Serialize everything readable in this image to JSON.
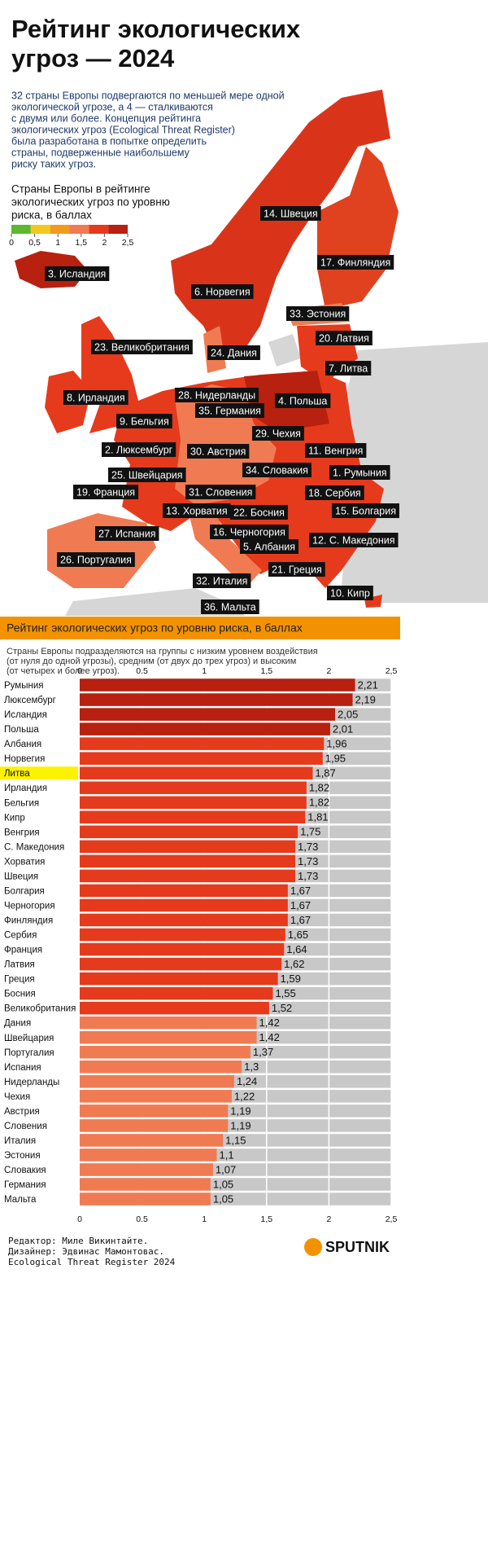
{
  "header": {
    "title": [
      "Рейтинг экологических",
      "угроз — 2024"
    ],
    "intro": [
      "32 страны Европы подвергаются по меньшей мере одной",
      "экологической угрозе, а 4 — сталкиваются",
      "с двумя или более. Концепция рейтинга",
      "экологических угроз (Ecological Threat Register)",
      "была разработана в попытке определить",
      "страны, подверженные наибольшему",
      "риску таких угроз."
    ]
  },
  "map": {
    "legend_title": [
      "Страны Европы в рейтинге",
      "экологических угроз по уровню",
      "риска, в баллах"
    ],
    "legend_ticks": [
      0,
      {
        "value": 0.5,
        "label": "0,5"
      },
      1,
      {
        "value": 1.5,
        "label": "1,5"
      },
      2,
      {
        "value": 2.5,
        "label": "2,5"
      }
    ],
    "legend_colors": [
      "#5cb82e",
      "#f2c81e",
      "#f29a1e",
      "#f07b52",
      "#e63a1c",
      "#b8200f"
    ],
    "labels": [
      "14. Швеция",
      "17. Финляндия",
      "3. Исландия",
      "6. Норвегия",
      "33. Эстония",
      "20. Латвия",
      "23. Великобритания",
      "24. Дания",
      "7. Литва",
      "28. Нидерланды",
      "4. Польша",
      "8. Ирландия",
      "35. Германия",
      "9. Бельгия",
      "29. Чехия",
      "2. Люксембург",
      "30. Австрия",
      "11. Венгрия",
      "25. Швейцария",
      "34. Словакия",
      "1. Румыния",
      "19. Франция",
      "31. Словения",
      "18. Сербия",
      "13. Хорватия",
      "22. Босния",
      "15. Болгария",
      "27. Испания",
      "16. Черногория",
      "12. С. Македония",
      "5. Албания",
      "26. Португалия",
      "21. Греция",
      "32. Италия",
      "10. Кипр",
      "36. Мальта"
    ]
  },
  "chart_data": {
    "type": "bar",
    "orientation": "horizontal",
    "title": "Рейтинг экологических угроз по уровню риска, в баллах",
    "subtitle": [
      "Страны Европы подразделяются на группы с низким уровнем воздействия",
      "(от нуля до одной угрозы), средним (от двух до трех угроз) и высоким",
      "(от четырех и более угроз)."
    ],
    "categories": [
      "Румыния",
      "Люксембург",
      "Исландия",
      "Польша",
      "Албания",
      "Норвегия",
      "Литва",
      "Ирландия",
      "Бельгия",
      "Кипр",
      "Венгрия",
      "С. Македония",
      "Хорватия",
      "Швеция",
      "Болгария",
      "Черногория",
      "Финляндия",
      "Сербия",
      "Франция",
      "Латвия",
      "Греция",
      "Босния",
      "Великобритания",
      "Дания",
      "Швейцария",
      "Португалия",
      "Испания",
      "Нидерланды",
      "Чехия",
      "Австрия",
      "Словения",
      "Италия",
      "Эстония",
      "Словакия",
      "Германия",
      "Мальта"
    ],
    "values": [
      2.21,
      2.19,
      2.05,
      2.01,
      1.96,
      1.95,
      1.87,
      1.82,
      1.82,
      1.81,
      1.75,
      1.73,
      1.73,
      1.73,
      1.67,
      1.67,
      1.67,
      1.65,
      1.64,
      1.62,
      1.59,
      1.55,
      1.52,
      1.42,
      1.42,
      1.37,
      1.3,
      1.24,
      1.22,
      1.19,
      1.19,
      1.15,
      1.1,
      1.07,
      1.05,
      1.05
    ],
    "value_labels": [
      "2,21",
      "2,19",
      "2,05",
      "2,01",
      "1,96",
      "1,95",
      "1,87",
      "1,82",
      "1,82",
      "1,81",
      "1,75",
      "1,73",
      "1,73",
      "1,73",
      "1,67",
      "1,67",
      "1,67",
      "1,65",
      "1,64",
      "1,62",
      "1,59",
      "1,55",
      "1,52",
      "1,42",
      "1,42",
      "1,37",
      "1,3",
      "1,24",
      "1,22",
      "1,19",
      "1,19",
      "1,15",
      "1,1",
      "1,07",
      "1,05",
      "1,05"
    ],
    "colors": [
      "#b8200f",
      "#b8200f",
      "#b8200f",
      "#b8200f",
      "#e63a1c",
      "#e63a1c",
      "#e63a1c",
      "#e63a1c",
      "#e63a1c",
      "#e63a1c",
      "#e63a1c",
      "#e63a1c",
      "#e63a1c",
      "#e63a1c",
      "#e63a1c",
      "#e63a1c",
      "#e63a1c",
      "#e63a1c",
      "#e63a1c",
      "#e63a1c",
      "#e63a1c",
      "#e63a1c",
      "#e63a1c",
      "#f07b52",
      "#f07b52",
      "#f07b52",
      "#f07b52",
      "#f07b52",
      "#f07b52",
      "#f07b52",
      "#f07b52",
      "#f07b52",
      "#f07b52",
      "#f07b52",
      "#f07b52",
      "#f07b52"
    ],
    "track_color": "#c8c8c8",
    "highlight_category": 6,
    "highlight_color": "#fff200",
    "xlim": [
      0,
      2.5
    ],
    "xticks": [
      0,
      0.5,
      1,
      {
        "value": 1.5,
        "label": "1,5"
      },
      2,
      {
        "value": 2.5,
        "label": "2,5"
      }
    ]
  },
  "footer": {
    "credits": [
      "Редактор: Миле Викинтайте.",
      "Дизайнер: Эдвинас Мамонтовас.",
      "Ecological Threat Register 2024"
    ],
    "logo": "SPUTNIK"
  }
}
